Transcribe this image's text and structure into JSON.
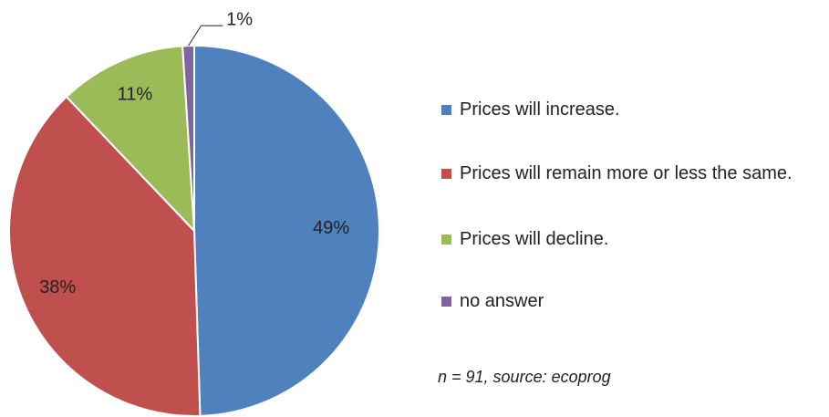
{
  "chart_data": {
    "type": "pie",
    "categories": [
      "Prices will increase.",
      "Prices will remain more or less the same.",
      "Prices will decline.",
      "no answer"
    ],
    "values": [
      49,
      38,
      11,
      1
    ],
    "value_labels": [
      "49%",
      "38%",
      "11%",
      "1%"
    ],
    "colors": [
      "#4f81bd",
      "#c0504d",
      "#9bbb59",
      "#8064a2"
    ],
    "legend": "right",
    "note": "n = 91, source: ecoprog"
  }
}
